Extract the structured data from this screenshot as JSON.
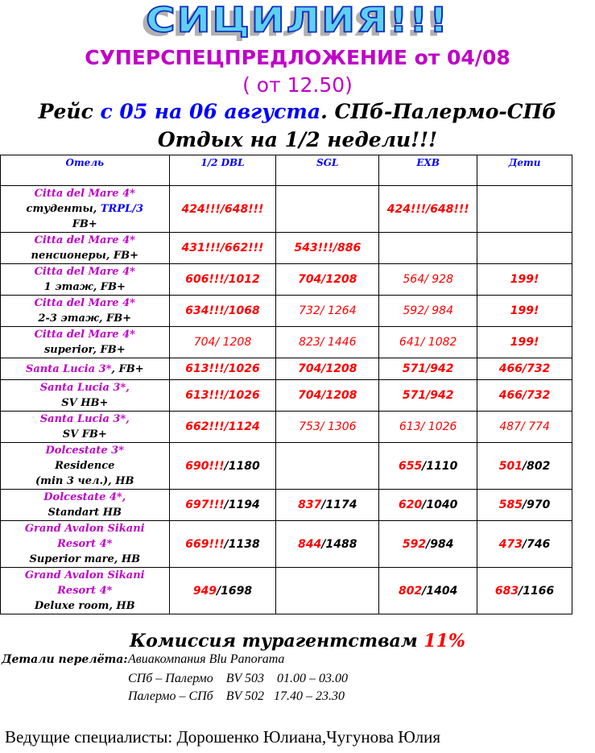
{
  "header": {
    "wordart": "СИЦИЛИЯ!!!",
    "offer": "СУПЕРСПЕЦПРЕДЛОЖЕНИЕ от 04/08",
    "offer_from": "( от 12.50)",
    "flight_prefix": "Рейс ",
    "flight_dates": "с 05 на 06 августа",
    "flight_route": ". СПб-Палермо-СПб",
    "rest": "Отдых на 1/2 недели!!!"
  },
  "colors": {
    "magenta": "#c000c8",
    "red": "#ff0000",
    "blue": "#0000ff"
  },
  "table": {
    "columns": [
      "Отель",
      "1/2 DBL",
      "SGL",
      "EXB",
      "Дети"
    ],
    "rows": [
      {
        "hotel": [
          [
            [
              "Citta del Mare 4*",
              "mag"
            ]
          ],
          [
            [
              "студенты, ",
              "blk"
            ],
            [
              "TRPL/3",
              "blu"
            ]
          ],
          [
            [
              "FB+",
              "blk"
            ]
          ]
        ],
        "cells": [
          {
            "red": "424!!!/648!!!",
            "black": "",
            "style": "bold"
          },
          {
            "red": "",
            "black": "",
            "style": "bold"
          },
          {
            "red": "424!!!/648!!!",
            "black": "",
            "style": "bold"
          },
          {
            "red": "",
            "black": "",
            "style": "bold"
          }
        ]
      },
      {
        "hotel": [
          [
            [
              "Citta del Mare 4*",
              "mag"
            ]
          ],
          [
            [
              "пенсионеры, FB+",
              "blk"
            ]
          ]
        ],
        "cells": [
          {
            "red": "431!!!/662!!!",
            "black": "",
            "style": "bold"
          },
          {
            "red": "543!!!/886",
            "black": "",
            "style": "bold"
          },
          {
            "red": "",
            "black": "",
            "style": "bold"
          },
          {
            "red": "",
            "black": "",
            "style": "bold"
          }
        ]
      },
      {
        "hotel": [
          [
            [
              "Citta del Mare 4*",
              "mag"
            ]
          ],
          [
            [
              "1 этаж, FB+",
              "blk"
            ]
          ]
        ],
        "cells": [
          {
            "red": "606!!!/1012",
            "black": "",
            "style": "bold"
          },
          {
            "red": "704/1208",
            "black": "",
            "style": "bold"
          },
          {
            "red": "564/ 928",
            "black": "",
            "style": "thin"
          },
          {
            "red": "199!",
            "black": "",
            "style": "bold"
          }
        ]
      },
      {
        "hotel": [
          [
            [
              "Citta del Mare 4*",
              "mag"
            ]
          ],
          [
            [
              "2-3 этаж, FB+",
              "blk"
            ]
          ]
        ],
        "cells": [
          {
            "red": "634!!!/1068",
            "black": "",
            "style": "bold"
          },
          {
            "red": "732/ 1264",
            "black": "",
            "style": "thin"
          },
          {
            "red": "592/ 984",
            "black": "",
            "style": "thin"
          },
          {
            "red": "199!",
            "black": "",
            "style": "bold"
          }
        ]
      },
      {
        "hotel": [
          [
            [
              "Citta del Mare 4*",
              "mag"
            ]
          ],
          [
            [
              "superior, FB+",
              "blk"
            ]
          ]
        ],
        "cells": [
          {
            "red": "704/ 1208",
            "black": "",
            "style": "thin"
          },
          {
            "red": "823/ 1446",
            "black": "",
            "style": "thin"
          },
          {
            "red": "641/ 1082",
            "black": "",
            "style": "thin"
          },
          {
            "red": "199!",
            "black": "",
            "style": "bold"
          }
        ]
      },
      {
        "hotel": [
          [
            [
              "Santa Lucia 3*",
              "mag"
            ],
            [
              ", FB+",
              "blk"
            ]
          ]
        ],
        "cells": [
          {
            "red": "613!!!/1026",
            "black": "",
            "style": "bold"
          },
          {
            "red": "704/1208",
            "black": "",
            "style": "bold"
          },
          {
            "red": "571/942",
            "black": "",
            "style": "bold"
          },
          {
            "red": "466/732",
            "black": "",
            "style": "bold"
          }
        ]
      },
      {
        "hotel": [
          [
            [
              "Santa Lucia 3*,",
              "mag"
            ]
          ],
          [
            [
              "SV HB+",
              "blk"
            ]
          ]
        ],
        "cells": [
          {
            "red": "613!!!/1026",
            "black": "",
            "style": "bold"
          },
          {
            "red": "704/1208",
            "black": "",
            "style": "bold"
          },
          {
            "red": "571/942",
            "black": "",
            "style": "bold"
          },
          {
            "red": "466/732",
            "black": "",
            "style": "bold"
          }
        ]
      },
      {
        "hotel": [
          [
            [
              "Santa Lucia 3*,",
              "mag"
            ]
          ],
          [
            [
              "SV FB+",
              "blk"
            ]
          ]
        ],
        "cells": [
          {
            "red": "662!!!/1124",
            "black": "",
            "style": "bold"
          },
          {
            "red": "753/ 1306",
            "black": "",
            "style": "thin"
          },
          {
            "red": "613/ 1026",
            "black": "",
            "style": "thin"
          },
          {
            "red": "487/ 774",
            "black": "",
            "style": "thin"
          }
        ]
      },
      {
        "hotel": [
          [
            [
              "Dolcestate 3*",
              "mag"
            ]
          ],
          [
            [
              "Residence",
              "blk"
            ]
          ],
          [
            [
              "(min 3 чел.), HB",
              "blk"
            ]
          ]
        ],
        "cells": [
          {
            "red": "690!!!",
            "black": "/1180",
            "style": "bold"
          },
          {
            "red": "",
            "black": "",
            "style": "bold"
          },
          {
            "red": "655",
            "black": "/1110",
            "style": "bold"
          },
          {
            "red": "501",
            "black": "/802",
            "style": "bold"
          }
        ]
      },
      {
        "hotel": [
          [
            [
              "Dolcestate 4*,",
              "mag"
            ]
          ],
          [
            [
              "Standart HB",
              "blk"
            ]
          ]
        ],
        "cells": [
          {
            "red": "697!!!",
            "black": "/1194",
            "style": "bold"
          },
          {
            "red": "837",
            "black": "/1174",
            "style": "bold"
          },
          {
            "red": "620",
            "black": "/1040",
            "style": "bold"
          },
          {
            "red": "585",
            "black": "/970",
            "style": "bold"
          }
        ]
      },
      {
        "hotel": [
          [
            [
              "Grand Avalon Sikani",
              "mag"
            ]
          ],
          [
            [
              "Resort 4*",
              "mag"
            ]
          ],
          [
            [
              "Superior mare, HB",
              "blk"
            ]
          ]
        ],
        "cells": [
          {
            "red": "669!!!",
            "black": "/1138",
            "style": "bold"
          },
          {
            "red": "844",
            "black": "/1488",
            "style": "bold"
          },
          {
            "red": "592",
            "black": "/984",
            "style": "bold"
          },
          {
            "red": "473",
            "black": "/746",
            "style": "bold"
          }
        ]
      },
      {
        "hotel": [
          [
            [
              "Grand Avalon Sikani",
              "mag"
            ]
          ],
          [
            [
              "Resort 4*",
              "mag"
            ]
          ],
          [
            [
              "Deluxe room, HB",
              "blk"
            ]
          ]
        ],
        "cells": [
          {
            "red": "949",
            "black": "/1698",
            "style": "bold"
          },
          {
            "red": "",
            "black": "",
            "style": "bold"
          },
          {
            "red": "802",
            "black": "/1404",
            "style": "bold"
          },
          {
            "red": "683",
            "black": "/1166",
            "style": "bold"
          }
        ]
      }
    ]
  },
  "commission": {
    "label": "Комиссия турагентствам ",
    "value": "11%"
  },
  "flight_details": {
    "label": "Детали перелёта:",
    "airline": "Авиакомпания Blu Panorama",
    "outbound": "СПб – Палермо    BV 503    01.00 – 03.00",
    "return": "Палермо – СПб    BV 502   17.40 – 23.30"
  },
  "footer": "Ведущие специалисты: Дорошенко Юлиана,Чугунова Юлия"
}
